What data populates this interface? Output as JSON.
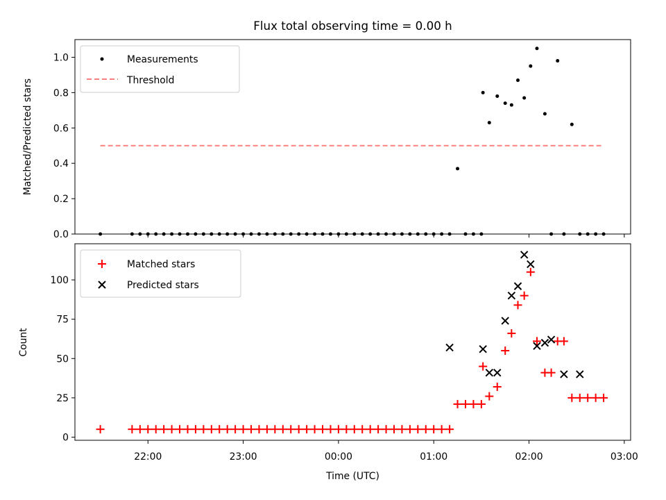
{
  "figure": {
    "title": "Flux total observing time = 0.00 h"
  },
  "chart_data": [
    {
      "type": "scatter",
      "ylabel": "Matched/Predicted stars",
      "ylim": [
        0,
        1.1
      ],
      "yticks": [
        0.0,
        0.2,
        0.4,
        0.6,
        0.8,
        1.0
      ],
      "ytick_labels": [
        "0.0",
        "0.2",
        "0.4",
        "0.6",
        "0.8",
        "1.0"
      ],
      "xlim": [
        "21:14",
        "03:04"
      ],
      "legend_position": "top-left",
      "series": [
        {
          "name": "Measurements",
          "kind": "dots",
          "color": "#000000",
          "x": [
            "21:30",
            "21:50",
            "21:55",
            "22:00",
            "22:05",
            "22:10",
            "22:15",
            "22:20",
            "22:25",
            "22:30",
            "22:35",
            "22:40",
            "22:45",
            "22:50",
            "22:55",
            "23:00",
            "23:05",
            "23:10",
            "23:15",
            "23:20",
            "23:25",
            "23:30",
            "23:35",
            "23:40",
            "23:45",
            "23:50",
            "23:55",
            "00:00",
            "00:05",
            "00:10",
            "00:15",
            "00:20",
            "00:25",
            "00:30",
            "00:35",
            "00:40",
            "00:45",
            "00:50",
            "00:55",
            "01:00",
            "01:05",
            "01:10",
            "01:15",
            "01:20",
            "01:25",
            "01:30",
            "01:31",
            "01:35",
            "01:40",
            "01:45",
            "01:49",
            "01:53",
            "01:57",
            "02:01",
            "02:05",
            "02:10",
            "02:14",
            "02:18",
            "02:22",
            "02:27",
            "02:32",
            "02:37",
            "02:42",
            "02:47"
          ],
          "y": [
            0,
            0,
            0,
            0,
            0,
            0,
            0,
            0,
            0,
            0,
            0,
            0,
            0,
            0,
            0,
            0,
            0,
            0,
            0,
            0,
            0,
            0,
            0,
            0,
            0,
            0,
            0,
            0,
            0,
            0,
            0,
            0,
            0,
            0,
            0,
            0,
            0,
            0,
            0,
            0,
            0,
            0,
            0.37,
            0,
            0,
            0,
            0.8,
            0.63,
            0.78,
            0.74,
            0.73,
            0.87,
            0.77,
            0.95,
            1.05,
            0.68,
            0,
            0.98,
            0,
            0.62,
            0,
            0,
            0,
            0
          ]
        },
        {
          "name": "Threshold",
          "kind": "dashed-line",
          "color": "#ff7f7f",
          "x": [
            "21:30",
            "02:47"
          ],
          "y": [
            0.5,
            0.5
          ]
        }
      ]
    },
    {
      "type": "scatter",
      "xlabel": "Time (UTC)",
      "ylabel": "Count",
      "ylim": [
        -2,
        123
      ],
      "yticks": [
        0,
        25,
        50,
        75,
        100
      ],
      "ytick_labels": [
        "0",
        "25",
        "50",
        "75",
        "100"
      ],
      "xlim": [
        "21:14",
        "03:04"
      ],
      "xticks": [
        "22:00",
        "23:00",
        "00:00",
        "01:00",
        "02:00",
        "03:00"
      ],
      "xtick_labels": [
        "22:00",
        "23:00",
        "00:00",
        "01:00",
        "02:00",
        "03:00"
      ],
      "legend_position": "top-left",
      "series": [
        {
          "name": "Matched stars",
          "kind": "plus",
          "color": "#ff0000",
          "x": [
            "21:30",
            "21:50",
            "21:55",
            "22:00",
            "22:05",
            "22:10",
            "22:15",
            "22:20",
            "22:25",
            "22:30",
            "22:35",
            "22:40",
            "22:45",
            "22:50",
            "22:55",
            "23:00",
            "23:05",
            "23:10",
            "23:15",
            "23:20",
            "23:25",
            "23:30",
            "23:35",
            "23:40",
            "23:45",
            "23:50",
            "23:55",
            "00:00",
            "00:05",
            "00:10",
            "00:15",
            "00:20",
            "00:25",
            "00:30",
            "00:35",
            "00:40",
            "00:45",
            "00:50",
            "00:55",
            "01:00",
            "01:05",
            "01:10",
            "01:15",
            "01:20",
            "01:25",
            "01:30",
            "01:31",
            "01:35",
            "01:40",
            "01:45",
            "01:49",
            "01:53",
            "01:57",
            "02:01",
            "02:05",
            "02:10",
            "02:14",
            "02:18",
            "02:22",
            "02:27",
            "02:32",
            "02:37",
            "02:42",
            "02:47"
          ],
          "y": [
            5,
            5,
            5,
            5,
            5,
            5,
            5,
            5,
            5,
            5,
            5,
            5,
            5,
            5,
            5,
            5,
            5,
            5,
            5,
            5,
            5,
            5,
            5,
            5,
            5,
            5,
            5,
            5,
            5,
            5,
            5,
            5,
            5,
            5,
            5,
            5,
            5,
            5,
            5,
            5,
            5,
            5,
            21,
            21,
            21,
            21,
            45,
            26,
            32,
            55,
            66,
            84,
            90,
            105,
            61,
            41,
            41,
            61,
            61,
            25,
            25,
            25,
            25,
            25
          ]
        },
        {
          "name": "Predicted stars",
          "kind": "x",
          "color": "#000000",
          "x": [
            "01:10",
            "01:31",
            "01:35",
            "01:40",
            "01:45",
            "01:49",
            "01:53",
            "01:57",
            "02:01",
            "02:05",
            "02:10",
            "02:14",
            "02:22",
            "02:32"
          ],
          "y": [
            57,
            56,
            41,
            41,
            74,
            90,
            96,
            116,
            110,
            58,
            60,
            62,
            40,
            40
          ]
        }
      ]
    }
  ]
}
